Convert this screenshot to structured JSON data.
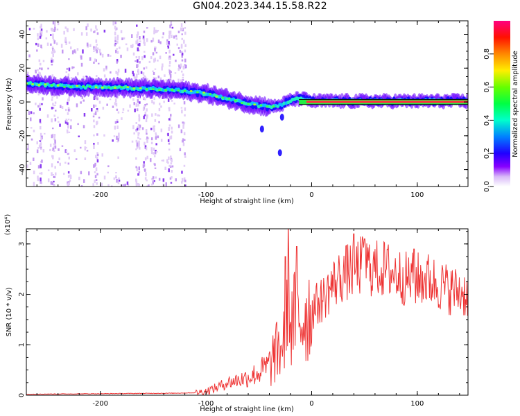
{
  "page": {
    "title": "GN04.2023.344.15.58.R22"
  },
  "colors": {
    "snr_line": "#ee3333",
    "spectrum_bar_stops": [
      "#ffffff",
      "#d8b8f8",
      "#8800ff",
      "#0000ff",
      "#00ccff",
      "#00ff66",
      "#66ff00",
      "#ffff00",
      "#ff8800",
      "#ff0000",
      "#ff0080"
    ]
  },
  "chart_data": [
    {
      "type": "heatmap",
      "title": "GN04.2023.344.15.58.R22",
      "xlabel": "Height of straight line (km)",
      "ylabel": "Frequency (Hz)",
      "xlim": [
        -270,
        148
      ],
      "ylim": [
        -50,
        48
      ],
      "xticks": [
        "-200",
        "-100",
        "0",
        "100"
      ],
      "xtick_values": [
        -200,
        -100,
        0,
        100
      ],
      "yticks": [
        "40",
        "20",
        "0",
        "-20",
        "-40"
      ],
      "ytick_values": [
        40,
        20,
        0,
        -20,
        -40
      ],
      "colorbar": {
        "label": "Normalized spectral amplitude",
        "ticks": [
          "0.0",
          "0.2",
          "0.4",
          "0.6",
          "0.8"
        ],
        "tick_values": [
          0.0,
          0.2,
          0.4,
          0.6,
          0.8
        ],
        "range": [
          0,
          1
        ]
      },
      "ridge": {
        "x": [
          -270,
          -250,
          -230,
          -200,
          -180,
          -160,
          -140,
          -120,
          -100,
          -80,
          -60,
          -50,
          -40,
          -30,
          -20,
          -10,
          0,
          20,
          50,
          100,
          148
        ],
        "frequency": [
          11,
          10,
          9,
          9,
          8.5,
          8,
          7.5,
          6.5,
          5,
          2,
          -1,
          -2,
          -3,
          -2,
          1,
          2,
          0.5,
          0.5,
          0.5,
          0.5,
          0.5
        ]
      },
      "noise_region_x": [
        -270,
        -120
      ],
      "scattered_features": [
        {
          "x": -47,
          "frequency": -16
        },
        {
          "x": -30,
          "frequency": -30
        },
        {
          "x": -28,
          "frequency": -9
        }
      ],
      "horizontal_reference_lines": [
        1.5,
        -1.5
      ]
    },
    {
      "type": "line",
      "xlabel": "Height of straight line (km)",
      "ylabel": "SNR (10 * v/v)",
      "yscale_note": "(x10⁴)",
      "xlim": [
        -270,
        148
      ],
      "ylim": [
        0,
        3.3
      ],
      "xticks": [
        "-200",
        "-100",
        "0",
        "100"
      ],
      "xtick_values": [
        -200,
        -100,
        0,
        100
      ],
      "yticks": [
        "0",
        "1",
        "2",
        "3"
      ],
      "ytick_values": [
        0,
        1,
        2,
        3
      ],
      "series": [
        {
          "color": "#ee3333",
          "x": [
            -270,
            -200,
            -130,
            -110,
            -100,
            -90,
            -80,
            -70,
            -60,
            -50,
            -40,
            -35,
            -30,
            -25,
            -22,
            -20,
            -15,
            -10,
            -5,
            0,
            10,
            20,
            30,
            40,
            50,
            60,
            70,
            80,
            90,
            100,
            110,
            120,
            130,
            140,
            148
          ],
          "y": [
            0.02,
            0.03,
            0.04,
            0.05,
            0.08,
            0.15,
            0.25,
            0.3,
            0.35,
            0.45,
            0.6,
            0.8,
            0.9,
            1.2,
            2.7,
            1.3,
            1.6,
            1.5,
            1.6,
            1.7,
            1.9,
            2.2,
            2.4,
            2.5,
            2.6,
            2.5,
            2.5,
            2.4,
            2.3,
            2.3,
            2.3,
            2.2,
            2.1,
            2.05,
            2.0
          ],
          "peaks": [
            {
              "x": -25,
              "y": 2.75
            },
            {
              "x": -14,
              "y": 2.95
            },
            {
              "x": 40,
              "y": 3.2
            },
            {
              "x": 50,
              "y": 3.1
            },
            {
              "x": 97,
              "y": 2.9
            }
          ]
        }
      ]
    }
  ]
}
